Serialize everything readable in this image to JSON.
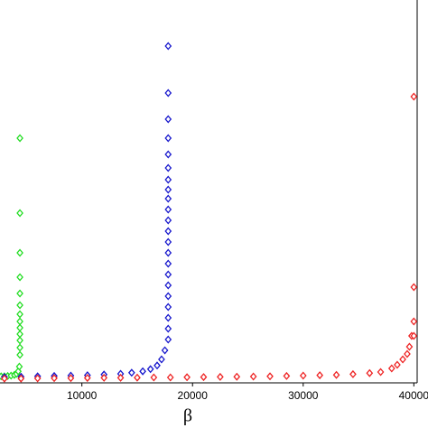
{
  "chart_data": {
    "type": "scatter",
    "x_label": "β",
    "xlim": [
      2600,
      40300
    ],
    "ylim": [
      0,
      106
    ],
    "xticks": [
      10000,
      20000,
      30000,
      40000
    ],
    "marker": "diamond",
    "series": [
      {
        "color": "#22dd22",
        "x": [
          2700,
          3000,
          3300,
          3600,
          3900,
          4100,
          4250,
          4350,
          4400,
          4400,
          4400,
          4400,
          4400,
          4400,
          4400,
          4400,
          4400,
          4400,
          4400,
          4400,
          4400
        ],
        "values": [
          1.8,
          1.8,
          1.9,
          2.0,
          2.2,
          2.5,
          3.2,
          4.5,
          7.75,
          9.75,
          11.75,
          13.5,
          15.25,
          17,
          19,
          21.5,
          24.75,
          29.25,
          36,
          47,
          67.75
        ]
      },
      {
        "color": "#1515cc",
        "x": [
          3000,
          4500,
          6000,
          7500,
          9000,
          10500,
          12000,
          13500,
          14500,
          15500,
          16200,
          16800,
          17200,
          17500,
          17800,
          17800,
          17800,
          17800,
          17800,
          17800,
          17800,
          17800,
          17800,
          17800,
          17800,
          17800,
          17800,
          17800,
          17800,
          17800,
          17800,
          17800,
          17800,
          17800,
          17800,
          17800
        ],
        "values": [
          1.6,
          1.7,
          1.8,
          1.9,
          2.0,
          2.1,
          2.3,
          2.5,
          2.8,
          3.2,
          3.8,
          4.8,
          6.5,
          9,
          12,
          15,
          18,
          21,
          24,
          27,
          30,
          33,
          36,
          39,
          42,
          45,
          48,
          51,
          53.5,
          56.25,
          59.5,
          63.25,
          67.75,
          73,
          80.25,
          93.25
        ]
      },
      {
        "color": "#ee2222",
        "x": [
          3000,
          4500,
          6000,
          7500,
          9000,
          10500,
          12000,
          13500,
          15000,
          16500,
          18000,
          19500,
          21000,
          22500,
          24000,
          25500,
          27000,
          28500,
          30000,
          31500,
          33000,
          34500,
          36000,
          37000,
          38000,
          38500,
          39000,
          39400,
          39600,
          39800,
          40000,
          40000,
          40000,
          40000
        ],
        "values": [
          1.2,
          1.2,
          1.25,
          1.3,
          1.3,
          1.35,
          1.4,
          1.4,
          1.45,
          1.5,
          1.5,
          1.55,
          1.6,
          1.65,
          1.7,
          1.75,
          1.8,
          1.9,
          2.0,
          2.1,
          2.2,
          2.4,
          2.7,
          3.0,
          4.0,
          5.0,
          6.5,
          8,
          10,
          13,
          17,
          13,
          26.5,
          79.25
        ]
      }
    ]
  }
}
